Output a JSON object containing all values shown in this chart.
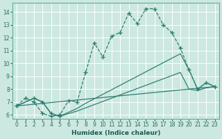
{
  "xlabel": "Humidex (Indice chaleur)",
  "bg_color": "#cce8e0",
  "grid_color": "#ffffff",
  "line_color": "#2e7d72",
  "xlim": [
    -0.5,
    23.5
  ],
  "ylim": [
    5.7,
    14.7
  ],
  "yticks": [
    6,
    7,
    8,
    9,
    10,
    11,
    12,
    13,
    14
  ],
  "xticks": [
    0,
    1,
    2,
    3,
    4,
    5,
    6,
    7,
    8,
    9,
    10,
    11,
    12,
    13,
    14,
    15,
    16,
    17,
    18,
    19,
    20,
    21,
    22,
    23
  ],
  "curve_main": {
    "x": [
      0,
      1,
      2,
      3,
      4,
      5,
      6,
      7,
      8,
      9,
      10,
      11,
      12,
      13,
      14,
      15,
      16,
      17,
      18,
      19,
      20,
      21,
      22,
      23
    ],
    "y": [
      6.7,
      7.3,
      7.0,
      6.1,
      5.9,
      6.0,
      7.1,
      7.0,
      9.3,
      11.6,
      10.5,
      12.1,
      12.4,
      13.9,
      13.1,
      14.25,
      14.25,
      13.0,
      12.4,
      11.2,
      9.5,
      8.0,
      8.5,
      8.2
    ]
  },
  "curve_solid1": {
    "x": [
      0,
      2,
      3,
      4,
      5,
      6,
      7,
      8,
      9,
      10,
      11,
      12,
      13,
      14,
      15,
      16,
      17,
      18,
      19,
      20,
      21,
      22,
      23
    ],
    "y": [
      6.7,
      7.3,
      7.0,
      6.1,
      5.9,
      6.2,
      6.5,
      6.9,
      7.25,
      7.6,
      7.95,
      8.3,
      8.65,
      9.0,
      9.35,
      9.7,
      10.05,
      10.4,
      10.75,
      9.5,
      8.0,
      8.5,
      8.2
    ]
  },
  "curve_solid2": {
    "x": [
      0,
      2,
      3,
      4,
      5,
      6,
      7,
      8,
      9,
      10,
      11,
      12,
      13,
      14,
      15,
      16,
      17,
      18,
      19,
      20,
      21,
      22,
      23
    ],
    "y": [
      6.7,
      7.3,
      7.0,
      6.1,
      5.9,
      6.1,
      6.3,
      6.55,
      6.8,
      7.05,
      7.3,
      7.55,
      7.8,
      8.05,
      8.3,
      8.55,
      8.8,
      9.05,
      9.3,
      8.0,
      7.9,
      8.1,
      8.2
    ]
  },
  "curve_solid3": {
    "x": [
      0,
      23
    ],
    "y": [
      6.7,
      8.2
    ]
  }
}
